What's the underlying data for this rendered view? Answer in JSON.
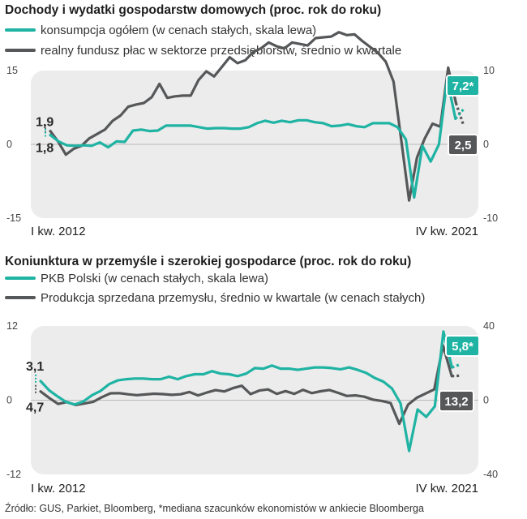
{
  "colors": {
    "teal": "#1fb3a3",
    "dark": "#555759",
    "plot_bg": "#ececec"
  },
  "source": "Źródło: GUS, Parkiet, Bloomberg, *mediana szacunków ekonomistów w ankiecie Bloomberga",
  "chart_data": [
    {
      "type": "line",
      "title": "Dochody i wydatki gospodarstw domowych (proc. rok do roku)",
      "x_start_label": "I kw. 2012",
      "x_end_label": "IV kw. 2021",
      "left_axis": {
        "ticks": [
          "15",
          "0",
          "-15"
        ],
        "range": [
          -15,
          15
        ]
      },
      "right_axis": {
        "ticks": [
          "10",
          "0",
          "-10"
        ],
        "range": [
          -10,
          10
        ]
      },
      "series": [
        {
          "name": "konsumpcja ogółem (w cenach stałych, skala lewa)",
          "color": "#1fb3a3",
          "axis": "left",
          "values": [
            1.9,
            0.6,
            -0.2,
            -0.3,
            -0.2,
            -0.3,
            0.4,
            -0.6,
            0.6,
            0.5,
            2.8,
            3.0,
            2.7,
            2.8,
            3.8,
            3.8,
            3.8,
            3.8,
            3.5,
            3.2,
            3.3,
            3.3,
            3.2,
            3.2,
            3.5,
            4.3,
            4.8,
            4.4,
            4.8,
            4.5,
            4.9,
            4.9,
            4.5,
            4.3,
            3.7,
            3.8,
            4.1,
            3.7,
            3.5,
            4.3,
            4.3,
            4.3,
            3.5,
            1.0,
            -10.8,
            -0.3,
            -3.5,
            0.0,
            13.2,
            5.2,
            7.2
          ],
          "end_value_label": "7,2*",
          "start_value_label": "1,9"
        },
        {
          "name": "realny fundusz płac w sektorze przedsiębiorstw, średnio w kwartale",
          "color": "#555759",
          "axis": "right",
          "values": [
            1.8,
            0.4,
            -1.4,
            -0.6,
            -0.2,
            0.8,
            1.4,
            2.0,
            3.2,
            3.9,
            5.1,
            5.4,
            5.6,
            6.4,
            8.2,
            6.3,
            6.5,
            6.6,
            6.6,
            8.7,
            9.9,
            9.2,
            10.5,
            11.8,
            11.0,
            11.4,
            12.5,
            13.0,
            13.8,
            13.3,
            13.0,
            13.8,
            13.6,
            13.4,
            14.4,
            14.5,
            14.6,
            15.2,
            14.8,
            14.9,
            14.0,
            13.2,
            12.4,
            11.2,
            8.5,
            0.5,
            -7.6,
            -1.8,
            0.8,
            2.8,
            2.4,
            10.4,
            5.6,
            2.5
          ],
          "end_value_label": "2,5",
          "start_value_label": "1,8"
        }
      ]
    },
    {
      "type": "line",
      "title": "Koniunktura w przemyśle i szerokiej gospodarce (proc. rok do roku)",
      "x_start_label": "I kw. 2012",
      "x_end_label": "IV kw. 2021",
      "left_axis": {
        "ticks": [
          "12",
          "0",
          "-12"
        ],
        "range": [
          -12,
          12
        ]
      },
      "right_axis": {
        "ticks": [
          "40",
          "0",
          "-40"
        ],
        "range": [
          -40,
          40
        ]
      },
      "series": [
        {
          "name": "PKB Polski (w cenach stałych, skala lewa)",
          "color": "#1fb3a3",
          "axis": "left",
          "values": [
            3.1,
            1.6,
            0.6,
            -0.3,
            -0.7,
            -0.2,
            0.8,
            1.5,
            2.6,
            3.2,
            3.4,
            3.5,
            3.5,
            3.4,
            3.4,
            3.8,
            3.4,
            3.9,
            4.2,
            4.2,
            4.7,
            4.3,
            4.2,
            3.9,
            4.3,
            5.2,
            5.1,
            5.6,
            5.1,
            5.1,
            4.9,
            5.1,
            5.3,
            5.3,
            5.2,
            5.0,
            5.3,
            4.9,
            4.4,
            3.6,
            3.0,
            1.9,
            -0.5,
            -8.2,
            -1.5,
            -2.7,
            -1.0,
            11.1,
            5.3,
            5.8
          ],
          "end_value_label": "5,8*",
          "start_value_label": "3,1"
        },
        {
          "name": "Produkcja sprzedana przemysłu, średnio w kwartale (w cenach stałych)",
          "color": "#555759",
          "axis": "right",
          "values": [
            4.7,
            1.2,
            -2.0,
            -1.0,
            -2.6,
            -1.8,
            -0.9,
            1.6,
            3.7,
            3.8,
            3.2,
            2.7,
            3.1,
            3.5,
            3.3,
            2.9,
            3.2,
            4.4,
            2.6,
            4.1,
            5.4,
            4.7,
            6.5,
            7.8,
            3.3,
            5.2,
            5.8,
            3.4,
            4.9,
            3.4,
            5.6,
            3.8,
            4.8,
            5.5,
            4.0,
            2.3,
            2.6,
            1.9,
            0.3,
            -0.4,
            -1.5,
            -12.7,
            -2.4,
            1.3,
            3.6,
            5.8,
            29.5,
            13.0,
            13.2
          ],
          "end_value_label": "13,2",
          "start_value_label": "4,7"
        }
      ]
    }
  ]
}
